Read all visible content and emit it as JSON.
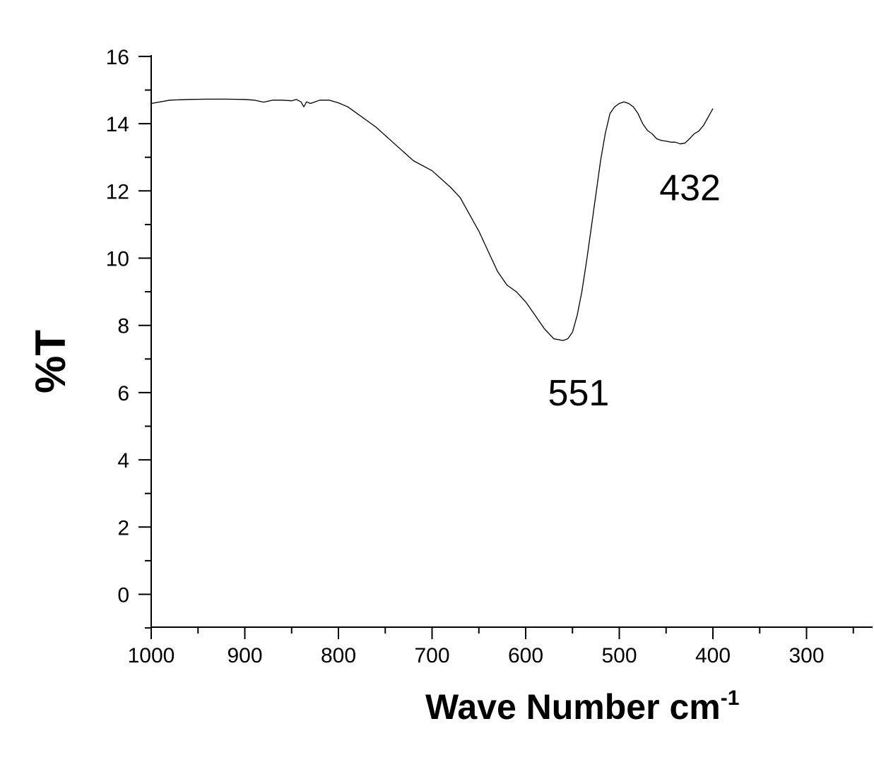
{
  "chart_data": {
    "type": "line",
    "title": "",
    "xlabel": "Wave Number cm",
    "xlabel_superscript": "-1",
    "ylabel": "%T",
    "xlim": [
      1000,
      230
    ],
    "ylim": [
      -1,
      16
    ],
    "x_ticks": [
      "1000",
      "900",
      "800",
      "700",
      "600",
      "500",
      "400",
      "300"
    ],
    "y_ticks": [
      "0",
      "2",
      "4",
      "6",
      "8",
      "10",
      "12",
      "14",
      "16"
    ],
    "grid": false,
    "legend": "none",
    "line_color": "#000000",
    "annotations": [
      {
        "label": "551",
        "x": 551,
        "y": 6.0
      },
      {
        "label": "432",
        "x": 432,
        "y": 12.1
      }
    ],
    "series": [
      {
        "x": [
          1000,
          980,
          960,
          940,
          920,
          900,
          890,
          880,
          870,
          860,
          850,
          845,
          840,
          837,
          834,
          830,
          825,
          820,
          810,
          800,
          790,
          780,
          760,
          740,
          720,
          700,
          690,
          680,
          670,
          660,
          650,
          640,
          630,
          620,
          610,
          600,
          590,
          580,
          570,
          560,
          555,
          550,
          545,
          540,
          535,
          530,
          525,
          520,
          515,
          510,
          505,
          500,
          495,
          490,
          485,
          480,
          475,
          470,
          465,
          460,
          455,
          450,
          445,
          440,
          435,
          430,
          425,
          420,
          415,
          410,
          405,
          400
        ],
        "y": [
          14.6,
          14.7,
          14.72,
          14.73,
          14.73,
          14.72,
          14.7,
          14.64,
          14.7,
          14.7,
          14.68,
          14.72,
          14.65,
          14.5,
          14.65,
          14.6,
          14.65,
          14.7,
          14.7,
          14.62,
          14.5,
          14.3,
          13.9,
          13.4,
          12.9,
          12.6,
          12.35,
          12.1,
          11.8,
          11.3,
          10.8,
          10.2,
          9.6,
          9.2,
          9.0,
          8.7,
          8.3,
          7.9,
          7.6,
          7.55,
          7.6,
          7.8,
          8.3,
          9.0,
          9.9,
          10.9,
          11.9,
          12.9,
          13.7,
          14.3,
          14.5,
          14.6,
          14.65,
          14.6,
          14.5,
          14.3,
          14.0,
          13.8,
          13.7,
          13.55,
          13.5,
          13.48,
          13.45,
          13.45,
          13.4,
          13.42,
          13.55,
          13.7,
          13.78,
          13.95,
          14.2,
          14.45
        ]
      }
    ]
  }
}
